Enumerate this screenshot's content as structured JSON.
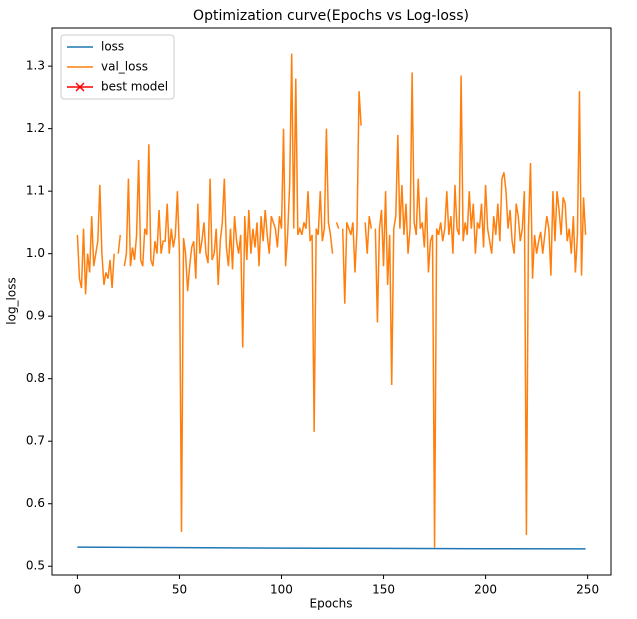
{
  "chart_data": {
    "type": "line",
    "title": "Optimization curve(Epochs vs Log-loss)",
    "x_label": "Epochs",
    "y_label": "log_loss",
    "x": [
      0,
      1,
      2,
      3,
      4,
      5,
      6,
      7,
      8,
      9,
      10,
      11,
      12,
      13,
      14,
      15,
      16,
      17,
      18,
      19,
      20,
      21,
      22,
      23,
      24,
      25,
      26,
      27,
      28,
      29,
      30,
      31,
      32,
      33,
      34,
      35,
      36,
      37,
      38,
      39,
      40,
      41,
      42,
      43,
      44,
      45,
      46,
      47,
      48,
      49,
      50,
      51,
      52,
      53,
      54,
      55,
      56,
      57,
      58,
      59,
      60,
      61,
      62,
      63,
      64,
      65,
      66,
      67,
      68,
      69,
      70,
      71,
      72,
      73,
      74,
      75,
      76,
      77,
      78,
      79,
      80,
      81,
      82,
      83,
      84,
      85,
      86,
      87,
      88,
      89,
      90,
      91,
      92,
      93,
      94,
      95,
      96,
      97,
      98,
      99,
      100,
      101,
      102,
      103,
      104,
      105,
      106,
      107,
      108,
      109,
      110,
      111,
      112,
      113,
      114,
      115,
      116,
      117,
      118,
      119,
      120,
      121,
      122,
      123,
      124,
      125,
      126,
      127,
      128,
      129,
      130,
      131,
      132,
      133,
      134,
      135,
      136,
      137,
      138,
      139,
      140,
      141,
      142,
      143,
      144,
      145,
      146,
      147,
      148,
      149,
      150,
      151,
      152,
      153,
      154,
      155,
      156,
      157,
      158,
      159,
      160,
      161,
      162,
      163,
      164,
      165,
      166,
      167,
      168,
      169,
      170,
      171,
      172,
      173,
      174,
      175,
      176,
      177,
      178,
      179,
      180,
      181,
      182,
      183,
      184,
      185,
      186,
      187,
      188,
      189,
      190,
      191,
      192,
      193,
      194,
      195,
      196,
      197,
      198,
      199,
      200,
      201,
      202,
      203,
      204,
      205,
      206,
      207,
      208,
      209,
      210,
      211,
      212,
      213,
      214,
      215,
      216,
      217,
      218,
      219,
      220,
      221,
      222,
      223,
      224,
      225,
      226,
      227,
      228,
      229,
      230,
      231,
      232,
      233,
      234,
      235,
      236,
      237,
      238,
      239,
      240,
      241,
      242,
      243,
      244,
      245,
      246,
      247,
      248,
      249
    ],
    "series": [
      {
        "name": "loss",
        "color": "#1f77b4",
        "x": [
          0,
          50,
          100,
          150,
          200,
          249
        ],
        "values": [
          0.5305,
          0.5298,
          0.529,
          0.5285,
          0.528,
          0.5278
        ]
      },
      {
        "name": "val_loss",
        "color": "#ff7f0e",
        "values": [
          1.03,
          0.96,
          0.945,
          1.04,
          0.935,
          1.0,
          0.97,
          1.06,
          0.98,
          1.0,
          1.02,
          1.11,
          1.0,
          0.95,
          0.97,
          0.96,
          0.99,
          0.945,
          1.0,
          null,
          1.0,
          1.03,
          null,
          0.98,
          1.0,
          1.12,
          0.98,
          1.01,
          0.99,
          1.03,
          1.15,
          0.99,
          0.98,
          1.04,
          1.03,
          1.175,
          0.99,
          0.98,
          1.02,
          1.0,
          1.07,
          1.0,
          1.02,
          1.02,
          1.08,
          1.0,
          1.04,
          1.01,
          1.03,
          1.1,
          1.0,
          0.555,
          1.025,
          1.0,
          0.94,
          0.98,
          1.01,
          1.02,
          0.96,
          1.08,
          1.0,
          1.02,
          1.05,
          1.0,
          0.985,
          1.12,
          0.99,
          1.0,
          1.04,
          0.95,
          1.02,
          1.05,
          1.12,
          1.01,
          0.98,
          1.04,
          0.975,
          1.06,
          1.02,
          1.0,
          1.03,
          0.85,
          1.06,
          0.99,
          1.07,
          1.0,
          1.04,
          1.01,
          1.05,
          0.98,
          1.06,
          1.02,
          1.07,
          1.03,
          1.0,
          1.06,
          1.05,
          1.04,
          1.01,
          1.06,
          1.04,
          1.2,
          0.98,
          1.03,
          1.11,
          1.32,
          1.04,
          1.28,
          1.03,
          1.04,
          1.03,
          1.05,
          1.04,
          1.1,
          1.02,
          1.03,
          0.715,
          1.04,
          1.03,
          1.1,
          1.02,
          1.04,
          1.2,
          1.05,
          1.03,
          1.0,
          null,
          1.05,
          1.04,
          null,
          1.04,
          0.92,
          1.05,
          1.04,
          1.03,
          1.05,
          0.97,
          1.04,
          1.26,
          1.205,
          null,
          1.05,
          1.0,
          1.06,
          1.04,
          null,
          1.04,
          0.89,
          1.04,
          1.07,
          0.98,
          1.1,
          0.95,
          1.03,
          0.79,
          1.04,
          1.06,
          1.19,
          1.04,
          1.11,
          1.03,
          1.08,
          1.0,
          1.04,
          1.29,
          1.05,
          1.03,
          1.12,
          1.04,
          1.05,
          1.01,
          1.09,
          0.97,
          1.02,
          1.03,
          0.53,
          1.04,
          1.03,
          1.05,
          1.02,
          1.04,
          1.1,
          1.03,
          1.06,
          1.0,
          1.11,
          1.04,
          1.03,
          1.285,
          1.02,
          1.05,
          1.03,
          1.1,
          1.04,
          1.08,
          1.0,
          1.05,
          1.04,
          1.08,
          1.01,
          1.11,
          1.04,
          1.02,
          1.0,
          1.06,
          1.03,
          1.08,
          1.02,
          1.12,
          1.13,
          1.1,
          1.04,
          1.07,
          1.02,
          1.0,
          1.08,
          1.06,
          1.02,
          1.04,
          1.1,
          0.55,
          1.04,
          1.145,
          0.96,
          1.03,
          1.0,
          1.02,
          1.035,
          1.0,
          1.03,
          1.06,
          1.04,
          0.965,
          1.1,
          1.02,
          1.1,
          1.07,
          1.03,
          1.09,
          1.08,
          1.02,
          1.04,
          1.0,
          1.06,
          0.97,
          1.03,
          1.26,
          0.965,
          1.09,
          1.03
        ]
      },
      {
        "name": "best model",
        "color": "#ff0000",
        "marker": "x",
        "x": [],
        "values": []
      }
    ],
    "xlim": [
      -12.45,
      261.45
    ],
    "xticks": [
      0,
      50,
      100,
      150,
      200,
      250
    ],
    "ylim": [
      0.486,
      1.361
    ],
    "yticks": [
      0.5,
      0.6,
      0.7,
      0.8,
      0.9,
      {
        "value": 1,
        "label": "1.0"
      },
      1.1,
      1.2,
      1.3
    ],
    "legend": "upper left",
    "grid": false
  }
}
